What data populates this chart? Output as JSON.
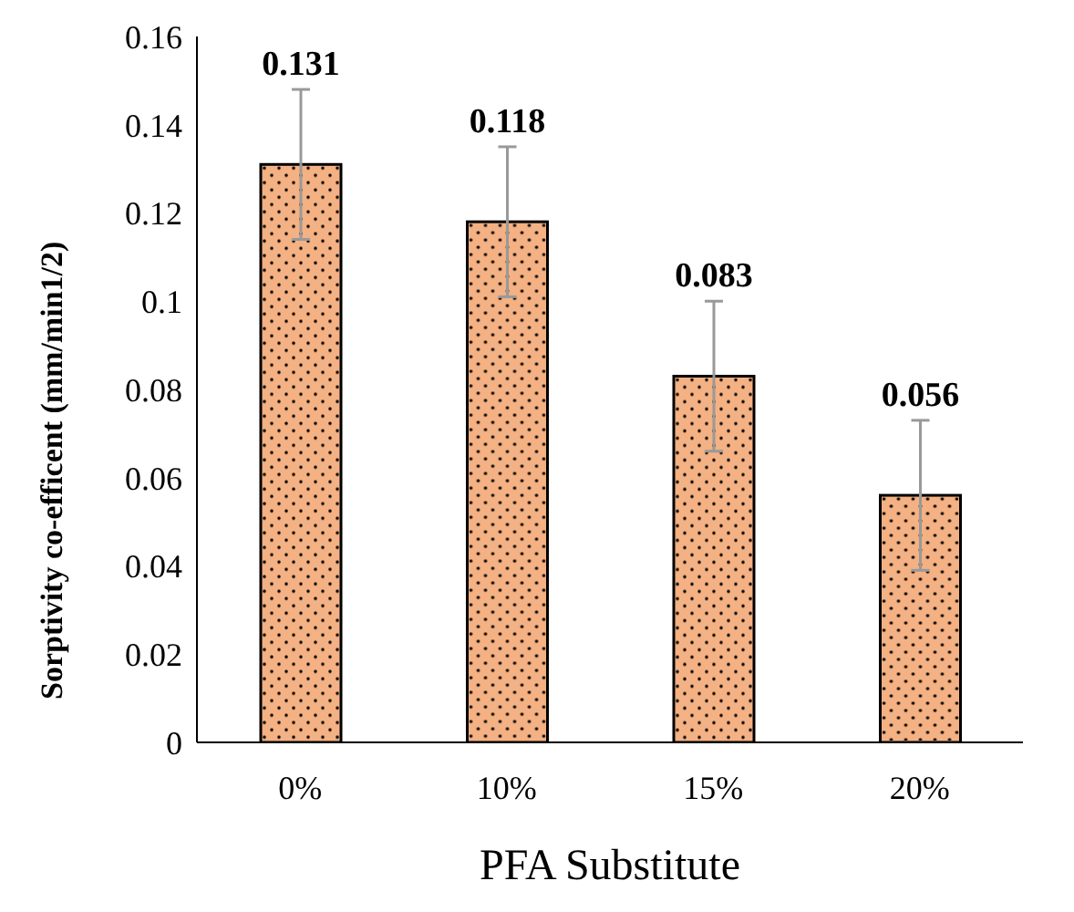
{
  "chart_data": {
    "type": "bar",
    "xlabel": "PFA Substitute",
    "ylabel": "Sorptivity co-efficent (mm/min1/2)",
    "categories": [
      "0%",
      "10%",
      "15%",
      "20%"
    ],
    "values": [
      0.131,
      0.118,
      0.083,
      0.056
    ],
    "errors": [
      0.017,
      0.017,
      0.017,
      0.017
    ],
    "color": "#f4b183",
    "data_labels": true,
    "ylim": [
      0,
      0.16
    ],
    "yticks": [
      0,
      0.02,
      0.04,
      0.06,
      0.08,
      0.1,
      0.12,
      0.14,
      0.16
    ],
    "grid": false,
    "legend": false
  }
}
